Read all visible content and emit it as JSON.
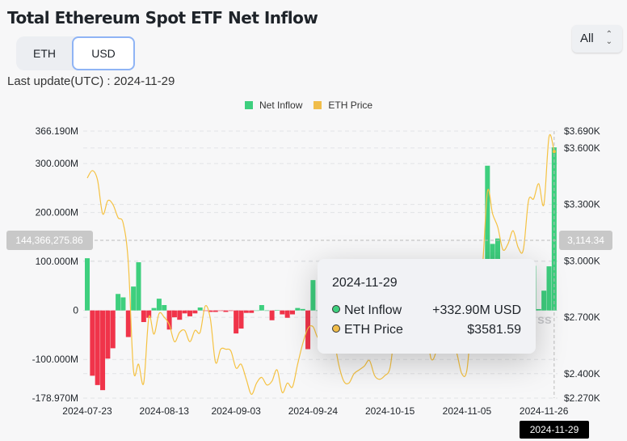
{
  "header": {
    "title": "Total Ethereum Spot ETF Net Inflow",
    "unit_options": [
      "ETH",
      "USD"
    ],
    "selected_unit": "USD",
    "last_update": "Last update(UTC) : 2024-11-29",
    "range_select": "All"
  },
  "colors": {
    "inflow_positive": "#3ecf7e",
    "inflow_negative": "#f0344a",
    "price": "#f5c242"
  },
  "crosshair": {
    "left_value": "144,366,275.86",
    "right_value": "3,114.34",
    "x_label": "2024-11-29"
  },
  "tooltip": {
    "date": "2024-11-29",
    "rows": [
      {
        "label": "Net Inflow",
        "value": "+332.90M USD"
      },
      {
        "label": "ETH Price",
        "value": "$3581.59"
      }
    ]
  },
  "chart_data": {
    "type": "bar",
    "title": "Total Ethereum Spot ETF Net Inflow",
    "legend": [
      "Net Inflow",
      "ETH Price"
    ],
    "legend_position": "top-center",
    "left_axis": {
      "ticks": [
        "366.190M",
        "300.000M",
        "200.000M",
        "100.000M",
        "0",
        "-100.000M",
        "-178.970M"
      ],
      "tick_values": [
        366.19,
        300,
        200,
        100,
        0,
        -100,
        -178.97
      ],
      "range": [
        -178.97,
        366.19
      ],
      "unit": "M USD"
    },
    "right_axis": {
      "ticks": [
        "$3.690K",
        "$3.600K",
        "$3.300K",
        "$3.000K",
        "$2.700K",
        "$2.400K",
        "$2.270K"
      ],
      "tick_values": [
        3690,
        3600,
        3300,
        3000,
        2700,
        2400,
        2270
      ],
      "range": [
        2270,
        3690
      ]
    },
    "x_ticks": [
      "2024-07-23",
      "2024-08-13",
      "2024-09-03",
      "2024-09-24",
      "2024-10-15",
      "2024-11-05",
      "2024-11-26"
    ],
    "x_tick_index": [
      0,
      15,
      29,
      44,
      59,
      74,
      89
    ],
    "grid": true,
    "series": [
      {
        "name": "Net Inflow",
        "type": "bar",
        "values": [
          106.6,
          -133.3,
          -152.3,
          -162.7,
          -98.3,
          -77.2,
          33.7,
          26.7,
          -54.3,
          48.8,
          98.4,
          -23.7,
          -15,
          5,
          24,
          11,
          -39,
          -14,
          -19,
          -6,
          -12,
          -6,
          6,
          -1,
          -3,
          -3,
          -1,
          -3,
          -1,
          -47,
          -37,
          -5,
          -5,
          0,
          11,
          0,
          -20,
          1,
          -8,
          -15,
          -8,
          5,
          3,
          -79,
          62,
          0,
          -16,
          59,
          -1,
          14,
          -3,
          0,
          7,
          -7,
          0,
          11,
          -3,
          5,
          -9,
          0,
          -11,
          1,
          24,
          0,
          -8,
          -19,
          -2,
          4,
          4,
          -1,
          9,
          -10,
          -10.9,
          -10.9,
          0,
          52,
          79.7,
          85.9,
          295.5,
          135.9,
          146.9,
          -3.2,
          -59.8,
          -39.1,
          81.2,
          -30.3,
          18,
          91.2,
          2.8,
          40.4,
          90.1,
          332.9
        ]
      },
      {
        "name": "ETH Price",
        "type": "line",
        "values": [
          3440,
          3480,
          3430,
          3250,
          3320,
          3300,
          3230,
          3200,
          2990,
          2420,
          2450,
          2350,
          2700,
          2610,
          2720,
          2700,
          2660,
          2570,
          2620,
          2630,
          2570,
          2630,
          2620,
          2760,
          2690,
          2460,
          2530,
          2530,
          2520,
          2430,
          2450,
          2370,
          2290,
          2350,
          2380,
          2340,
          2360,
          2420,
          2300,
          2350,
          2330,
          2450,
          2560,
          2640,
          2650,
          2590,
          2630,
          2700,
          2600,
          2450,
          2360,
          2350,
          2400,
          2420,
          2440,
          2470,
          2390,
          2370,
          2390,
          2430,
          2620,
          2610,
          2640,
          2600,
          2640,
          2540,
          2650,
          2480,
          2520,
          2680,
          2630,
          2560,
          2510,
          2400,
          2420,
          2720,
          2900,
          2960,
          3370,
          3250,
          3180,
          3060,
          3090,
          3160,
          3070,
          3060,
          3320,
          3330,
          3410,
          3300,
          3660,
          3581.59
        ]
      }
    ]
  }
}
